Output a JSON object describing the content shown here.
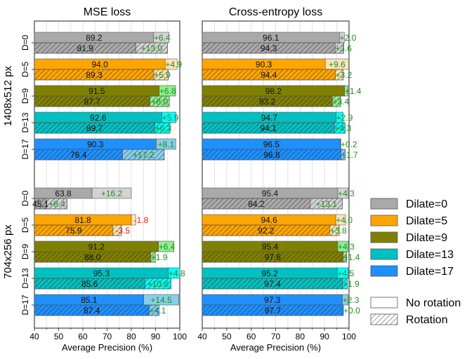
{
  "chart_data": {
    "type": "bar",
    "orientation": "horizontal",
    "xlabel": "Average Precision (%)",
    "xlim": [
      40,
      100
    ],
    "xticks": [
      "40",
      "50",
      "60",
      "70",
      "80",
      "90",
      "100"
    ],
    "grid": "vertical",
    "legend_position": "right",
    "legend": {
      "colors": [
        {
          "label": "Dilate=0",
          "color": "#a9a9a9"
        },
        {
          "label": "Dilate=5",
          "color": "#ffa500"
        },
        {
          "label": "Dilate=9",
          "color": "#808000"
        },
        {
          "label": "Dilate=13",
          "color": "#00c0c0"
        },
        {
          "label": "Dilate=17",
          "color": "#1e90ff"
        }
      ],
      "patterns": [
        {
          "label": "No rotation",
          "pattern": "solid"
        },
        {
          "label": "Rotation",
          "pattern": "hatched"
        }
      ]
    },
    "delta_colors": {
      "positive": "#228b22",
      "negative": "#e0201b"
    },
    "light_colors": [
      "#d3d3d3",
      "#ffe4b5",
      "#90ee90",
      "#00ffff",
      "#87ceeb"
    ],
    "groups": [
      "1408x512 px",
      "704x256 px"
    ],
    "categories": [
      "D=0",
      "D=5",
      "D=9",
      "D=13",
      "D=17"
    ],
    "panels": [
      {
        "title": "MSE loss",
        "data": [
          {
            "no_rotation": {
              "base": [
                89.2,
                94.0,
                91.5,
                92.6,
                90.3
              ],
              "delta": [
                6.4,
                4.9,
                6.8,
                5.9,
                8.1
              ]
            },
            "rotation": {
              "base": [
                81.9,
                89.3,
                87.7,
                89.7,
                76.4
              ],
              "delta": [
                13.0,
                5.9,
                8.0,
                6.3,
                17.2
              ]
            }
          },
          {
            "no_rotation": {
              "base": [
                63.8,
                81.8,
                91.2,
                95.3,
                85.1
              ],
              "delta": [
                16.2,
                -1.8,
                6.4,
                4.8,
                14.5
              ]
            },
            "rotation": {
              "base": [
                45.1,
                75.9,
                88.0,
                85.6,
                87.4
              ],
              "delta": [
                8.4,
                -3.5,
                1.9,
                10.8,
                4.1
              ]
            }
          }
        ]
      },
      {
        "title": "Cross-entropy loss",
        "data": [
          {
            "no_rotation": {
              "base": [
                96.1,
                90.3,
                98.2,
                94.7,
                96.5
              ],
              "delta": [
                2.0,
                9.6,
                1.4,
                2.9,
                0.2
              ]
            },
            "rotation": {
              "base": [
                94.3,
                94.4,
                93.2,
                94.1,
                96.8
              ],
              "delta": [
                3.6,
                3.2,
                3.4,
                4.3,
                1.7
              ]
            }
          },
          {
            "no_rotation": {
              "base": [
                95.4,
                94.6,
                95.4,
                95.2,
                97.3
              ],
              "delta": [
                4.3,
                4.0,
                4.3,
                4.5,
                2.3
              ]
            },
            "rotation": {
              "base": [
                84.2,
                92.2,
                97.6,
                97.4,
                97.7
              ],
              "delta": [
                13.1,
                3.8,
                1.4,
                1.9,
                0.0
              ]
            }
          }
        ]
      }
    ]
  }
}
